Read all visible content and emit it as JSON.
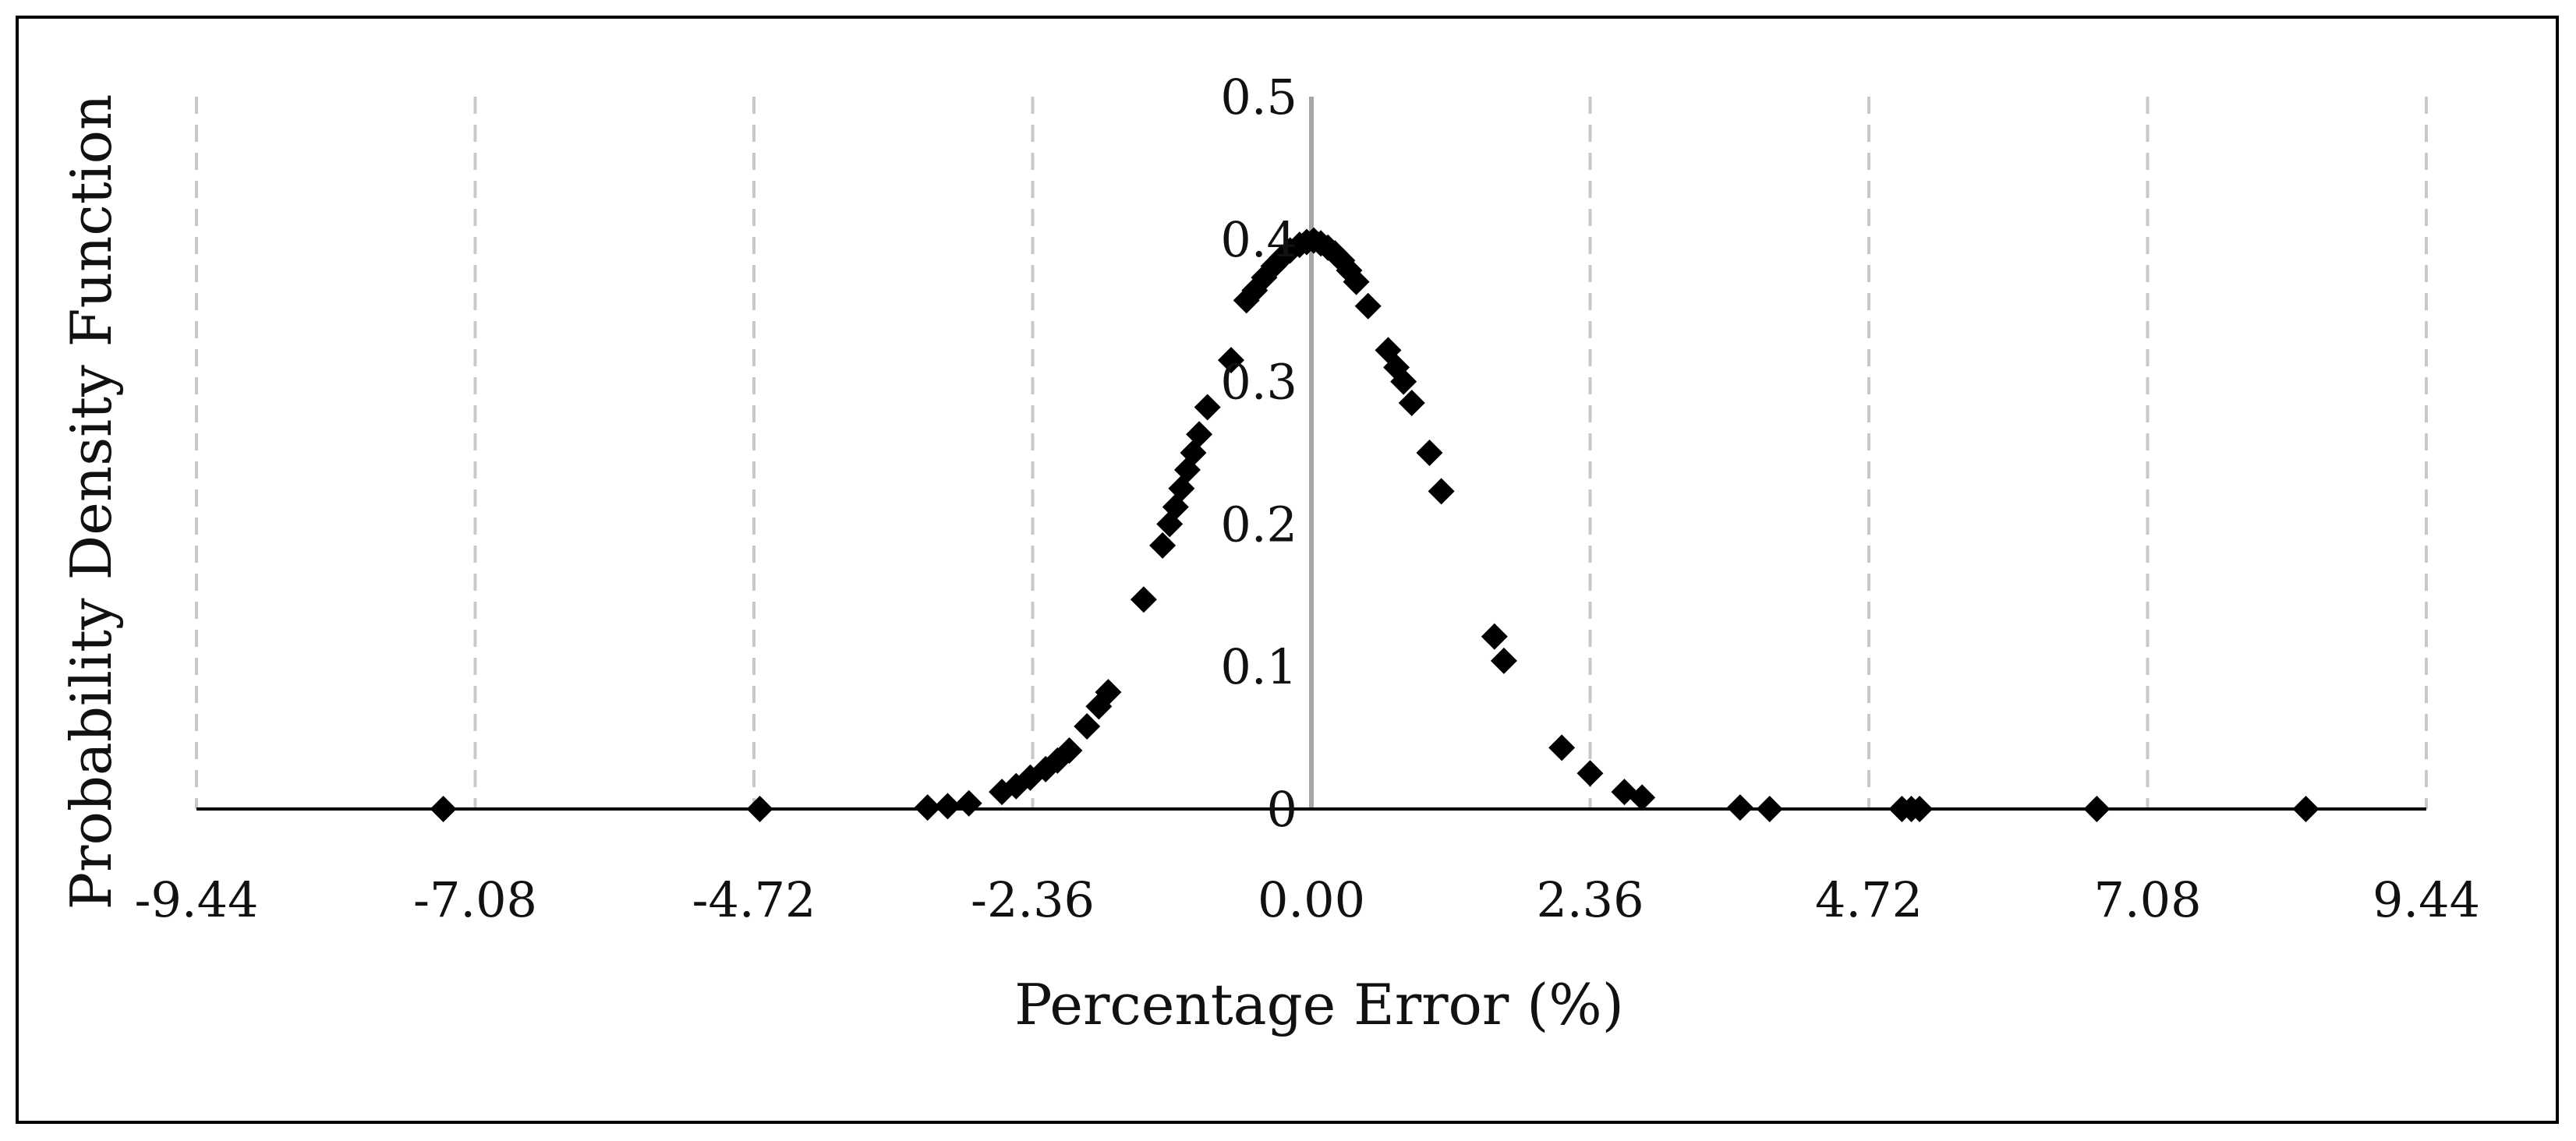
{
  "chart_data": {
    "type": "scatter",
    "xlabel": "Percentage Error (%)",
    "ylabel": "Probability Density Function",
    "xlim": [
      -9.44,
      9.44
    ],
    "ylim": [
      0,
      0.5
    ],
    "x_ticks": [
      "-9.44",
      "-7.08",
      "-4.72",
      "-2.36",
      "0.00",
      "2.36",
      "4.72",
      "7.08",
      "9.44"
    ],
    "y_ticks": [
      "0",
      "0.1",
      "0.2",
      "0.3",
      "0.4",
      "0.5"
    ],
    "grid": "vertical dashed",
    "marker": "diamond",
    "marker_color": "#000000",
    "grid_color": "#c8c8c8",
    "points": [
      {
        "x": -7.35,
        "y": 0.0
      },
      {
        "x": -4.67,
        "y": 0.0
      },
      {
        "x": -3.25,
        "y": 0.001
      },
      {
        "x": -3.08,
        "y": 0.002
      },
      {
        "x": -2.9,
        "y": 0.004
      },
      {
        "x": -2.62,
        "y": 0.012
      },
      {
        "x": -2.5,
        "y": 0.016
      },
      {
        "x": -2.38,
        "y": 0.022
      },
      {
        "x": -2.25,
        "y": 0.028
      },
      {
        "x": -2.15,
        "y": 0.034
      },
      {
        "x": -2.05,
        "y": 0.041
      },
      {
        "x": -1.9,
        "y": 0.058
      },
      {
        "x": -1.8,
        "y": 0.072
      },
      {
        "x": -1.72,
        "y": 0.082
      },
      {
        "x": -1.42,
        "y": 0.147
      },
      {
        "x": -1.26,
        "y": 0.185
      },
      {
        "x": -1.2,
        "y": 0.2
      },
      {
        "x": -1.15,
        "y": 0.212
      },
      {
        "x": -1.1,
        "y": 0.225
      },
      {
        "x": -1.05,
        "y": 0.238
      },
      {
        "x": -1.0,
        "y": 0.25
      },
      {
        "x": -0.95,
        "y": 0.263
      },
      {
        "x": -0.88,
        "y": 0.282
      },
      {
        "x": -0.68,
        "y": 0.315
      },
      {
        "x": -0.55,
        "y": 0.357
      },
      {
        "x": -0.48,
        "y": 0.364
      },
      {
        "x": -0.4,
        "y": 0.373
      },
      {
        "x": -0.32,
        "y": 0.381
      },
      {
        "x": -0.25,
        "y": 0.387
      },
      {
        "x": -0.18,
        "y": 0.392
      },
      {
        "x": -0.1,
        "y": 0.396
      },
      {
        "x": -0.04,
        "y": 0.398
      },
      {
        "x": 0.02,
        "y": 0.399
      },
      {
        "x": 0.08,
        "y": 0.397
      },
      {
        "x": 0.14,
        "y": 0.394
      },
      {
        "x": 0.2,
        "y": 0.39
      },
      {
        "x": 0.26,
        "y": 0.385
      },
      {
        "x": 0.32,
        "y": 0.378
      },
      {
        "x": 0.38,
        "y": 0.37
      },
      {
        "x": 0.48,
        "y": 0.353
      },
      {
        "x": 0.65,
        "y": 0.322
      },
      {
        "x": 0.72,
        "y": 0.31
      },
      {
        "x": 0.78,
        "y": 0.3
      },
      {
        "x": 0.85,
        "y": 0.285
      },
      {
        "x": 1.0,
        "y": 0.25
      },
      {
        "x": 1.1,
        "y": 0.223
      },
      {
        "x": 1.55,
        "y": 0.121
      },
      {
        "x": 1.63,
        "y": 0.104
      },
      {
        "x": 2.12,
        "y": 0.043
      },
      {
        "x": 2.36,
        "y": 0.025
      },
      {
        "x": 2.65,
        "y": 0.012
      },
      {
        "x": 2.8,
        "y": 0.008
      },
      {
        "x": 3.63,
        "y": 0.001
      },
      {
        "x": 3.88,
        "y": 0.0
      },
      {
        "x": 5.0,
        "y": 0.0
      },
      {
        "x": 5.08,
        "y": 0.0
      },
      {
        "x": 5.15,
        "y": 0.0
      },
      {
        "x": 6.65,
        "y": 0.0
      },
      {
        "x": 8.42,
        "y": 0.0
      }
    ]
  }
}
